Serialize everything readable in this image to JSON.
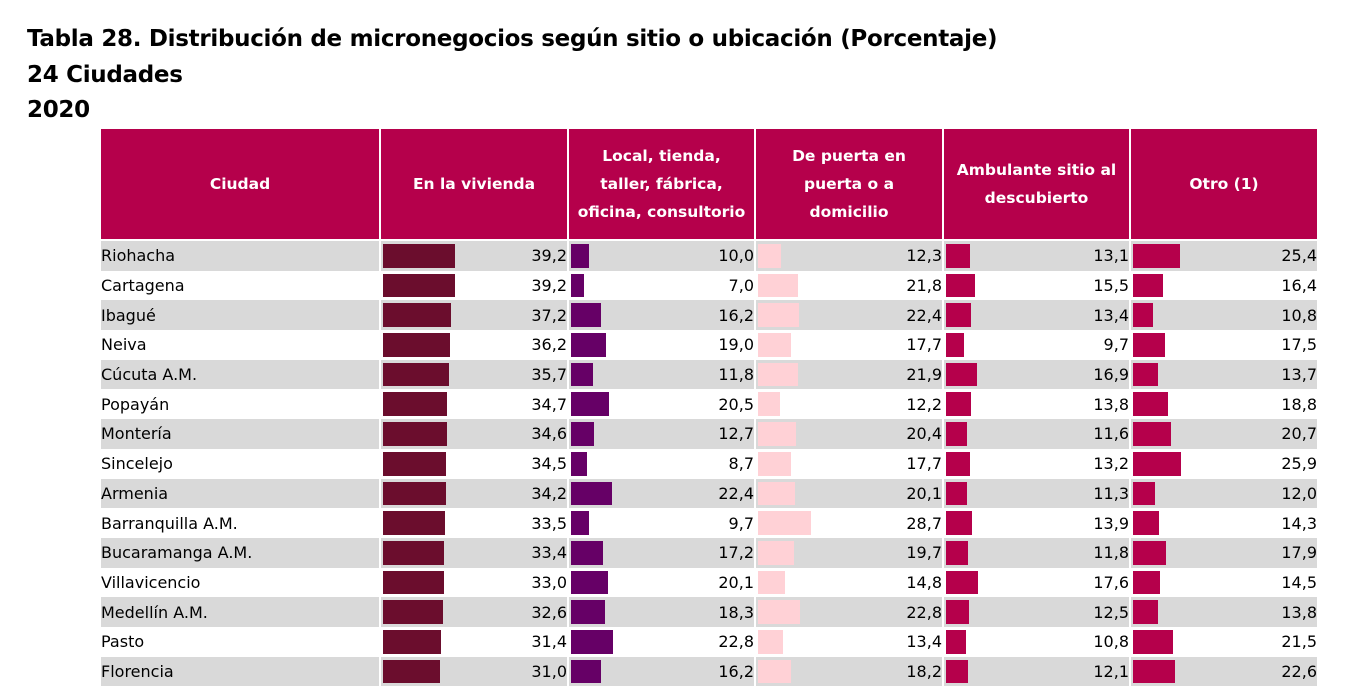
{
  "header": {
    "title": "Tabla 28. Distribución de micronegocios según sitio o ubicación (Porcentaje)",
    "subtitle": "24 Ciudades",
    "year": "2020"
  },
  "table": {
    "columns": [
      "Ciudad",
      "En la vivienda",
      "Local, tienda, taller, fábrica, oficina, consultorio",
      "De puerta en puerta o a domicilio",
      "Ambulante sitio al descubierto",
      "Otro (1)"
    ],
    "column_header_lines": [
      [
        "Ciudad"
      ],
      [
        "En la vivienda"
      ],
      [
        "Local, tienda,",
        "taller, fábrica,",
        "oficina, consultorio"
      ],
      [
        "De puerta en",
        "puerta o a",
        "domicilio"
      ],
      [
        "Ambulante sitio al",
        "descubierto"
      ],
      [
        "Otro (1)"
      ]
    ],
    "bar_colors": [
      "#6b0d2d",
      "#660066",
      "#ffd1d6",
      "#b5004b",
      "#b5004b"
    ],
    "bar_scale_max": 100,
    "rows": [
      {
        "city": "Riohacha",
        "values": [
          "39,2",
          "10,0",
          "12,3",
          "13,1",
          "25,4"
        ],
        "pct": [
          39.2,
          10.0,
          12.3,
          13.1,
          25.4
        ]
      },
      {
        "city": "Cartagena",
        "values": [
          "39,2",
          "7,0",
          "21,8",
          "15,5",
          "16,4"
        ],
        "pct": [
          39.2,
          7.0,
          21.8,
          15.5,
          16.4
        ]
      },
      {
        "city": "Ibagué",
        "values": [
          "37,2",
          "16,2",
          "22,4",
          "13,4",
          "10,8"
        ],
        "pct": [
          37.2,
          16.2,
          22.4,
          13.4,
          10.8
        ]
      },
      {
        "city": "Neiva",
        "values": [
          "36,2",
          "19,0",
          "17,7",
          "9,7",
          "17,5"
        ],
        "pct": [
          36.2,
          19.0,
          17.7,
          9.7,
          17.5
        ]
      },
      {
        "city": "Cúcuta A.M.",
        "values": [
          "35,7",
          "11,8",
          "21,9",
          "16,9",
          "13,7"
        ],
        "pct": [
          35.7,
          11.8,
          21.9,
          16.9,
          13.7
        ]
      },
      {
        "city": "Popayán",
        "values": [
          "34,7",
          "20,5",
          "12,2",
          "13,8",
          "18,8"
        ],
        "pct": [
          34.7,
          20.5,
          12.2,
          13.8,
          18.8
        ]
      },
      {
        "city": "Montería",
        "values": [
          "34,6",
          "12,7",
          "20,4",
          "11,6",
          "20,7"
        ],
        "pct": [
          34.6,
          12.7,
          20.4,
          11.6,
          20.7
        ]
      },
      {
        "city": "Sincelejo",
        "values": [
          "34,5",
          "8,7",
          "17,7",
          "13,2",
          "25,9"
        ],
        "pct": [
          34.5,
          8.7,
          17.7,
          13.2,
          25.9
        ]
      },
      {
        "city": "Armenia",
        "values": [
          "34,2",
          "22,4",
          "20,1",
          "11,3",
          "12,0"
        ],
        "pct": [
          34.2,
          22.4,
          20.1,
          11.3,
          12.0
        ]
      },
      {
        "city": "Barranquilla A.M.",
        "values": [
          "33,5",
          "9,7",
          "28,7",
          "13,9",
          "14,3"
        ],
        "pct": [
          33.5,
          9.7,
          28.7,
          13.9,
          14.3
        ]
      },
      {
        "city": "Bucaramanga A.M.",
        "values": [
          "33,4",
          "17,2",
          "19,7",
          "11,8",
          "17,9"
        ],
        "pct": [
          33.4,
          17.2,
          19.7,
          11.8,
          17.9
        ]
      },
      {
        "city": "Villavicencio",
        "values": [
          "33,0",
          "20,1",
          "14,8",
          "17,6",
          "14,5"
        ],
        "pct": [
          33.0,
          20.1,
          14.8,
          17.6,
          14.5
        ]
      },
      {
        "city": "Medellín A.M.",
        "values": [
          "32,6",
          "18,3",
          "22,8",
          "12,5",
          "13,8"
        ],
        "pct": [
          32.6,
          18.3,
          22.8,
          12.5,
          13.8
        ]
      },
      {
        "city": "Pasto",
        "values": [
          "31,4",
          "22,8",
          "13,4",
          "10,8",
          "21,5"
        ],
        "pct": [
          31.4,
          22.8,
          13.4,
          10.8,
          21.5
        ]
      },
      {
        "city": "Florencia",
        "values": [
          "31,0",
          "16,2",
          "18,2",
          "12,1",
          "22,6"
        ],
        "pct": [
          31.0,
          16.2,
          18.2,
          12.1,
          22.6
        ]
      }
    ]
  }
}
